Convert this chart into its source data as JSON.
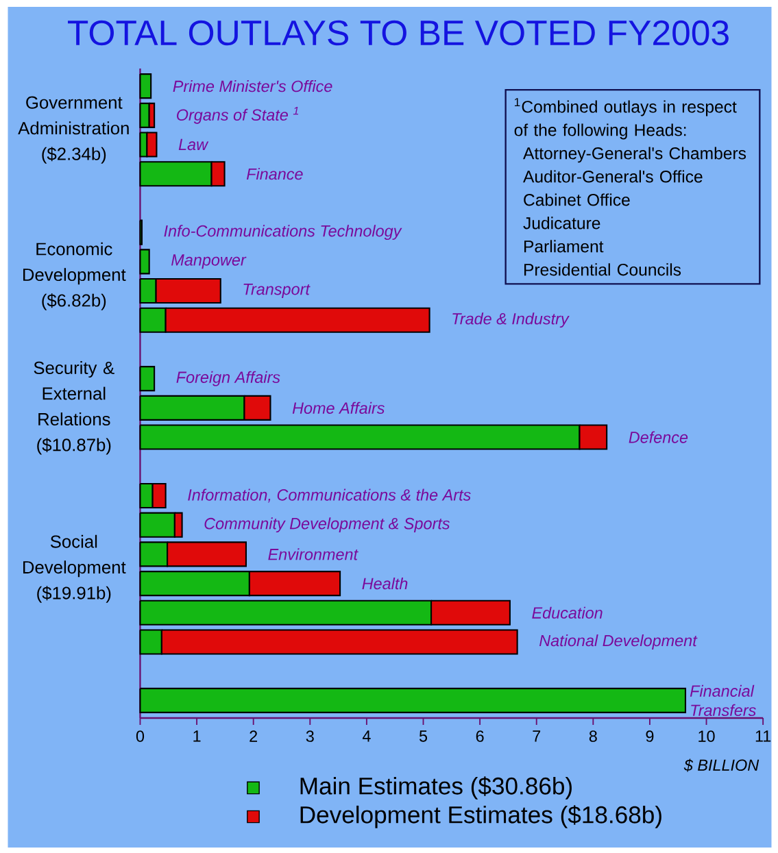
{
  "chart_data": {
    "type": "bar",
    "orientation": "horizontal",
    "stacked": true,
    "title": "TOTAL OUTLAYS TO BE VOTED FY2003",
    "xlabel": "$ BILLION",
    "categories": [
      "Prime Minister's Office",
      "Organs of State $^{1}$",
      "Law",
      "Finance",
      null,
      "Info-Communications Technology",
      "Manpower",
      "Transport",
      "Trade & Industry",
      null,
      "Foreign Affairs",
      "Home Affairs",
      "Defence",
      null,
      "Information, Communications & the Arts",
      "Community Development & Sports",
      "Environment",
      "Health",
      "Education",
      "National Development",
      null,
      "Financial Transfers"
    ],
    "series": [
      {
        "name": "Main Estimates  ($30.86b)",
        "color": "#14b814",
        "values": [
          0.19,
          0.16,
          0.12,
          1.26,
          null,
          0.03,
          0.16,
          0.28,
          0.45,
          null,
          0.25,
          1.84,
          7.76,
          null,
          0.22,
          0.61,
          0.48,
          1.93,
          5.14,
          0.38,
          null,
          9.63
        ]
      },
      {
        "name": "Development Estimates  ($18.68b)",
        "color": "#e00a0a",
        "values": [
          null,
          0.09,
          0.17,
          0.23,
          null,
          null,
          null,
          1.14,
          4.66,
          null,
          null,
          0.46,
          0.48,
          null,
          0.23,
          0.13,
          1.39,
          1.6,
          1.39,
          6.28,
          null,
          null
        ]
      }
    ],
    "xlim": [
      0,
      11
    ],
    "xticks": [
      0,
      1,
      2,
      3,
      4,
      5,
      6,
      7,
      8,
      9,
      10,
      11
    ],
    "legend": "bottom",
    "annotations": [
      "Government Administration ($2.34b)",
      "Economic Development ($6.82b)",
      "Security & External Relations ($10.87b)",
      "Social Development ($19.91b)",
      "$^{1}$Combined outlays in respect of the following Heads:",
      "Attorney-General's Chambers",
      "Auditor-General's Office",
      "Cabinet Office",
      "Judicature",
      "Parliament",
      "Presidential Councils"
    ]
  }
}
